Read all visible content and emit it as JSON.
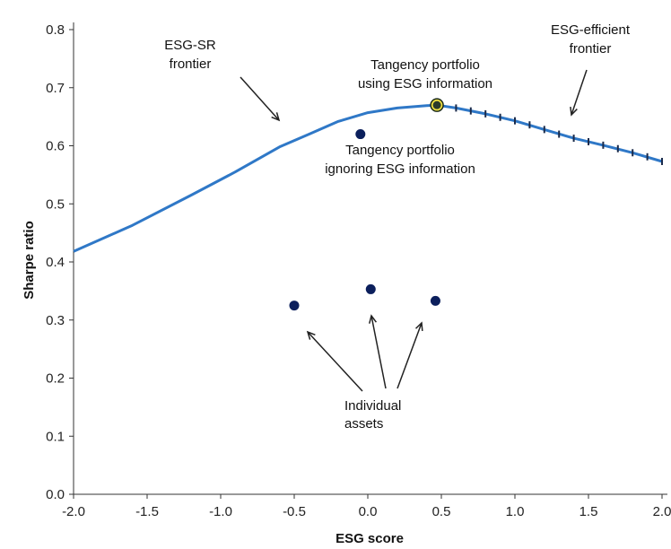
{
  "chart_data": {
    "type": "line",
    "title": "",
    "xlabel": "ESG score",
    "ylabel": "Sharpe ratio",
    "xlim": [
      -2.0,
      2.0
    ],
    "ylim": [
      0.0,
      0.8
    ],
    "x_ticks": [
      "-2.0",
      "-1.5",
      "-1.0",
      "-0.5",
      "0.0",
      "0.5",
      "1.0",
      "1.5",
      "2.0"
    ],
    "y_ticks": [
      "0.0",
      "0.1",
      "0.2",
      "0.3",
      "0.4",
      "0.5",
      "0.6",
      "0.7",
      "0.8"
    ],
    "grid": false,
    "colors": {
      "frontier": "#2f78c7",
      "points": "#0b1f5c",
      "highlight": "#f0e040",
      "arrow": "#222222"
    },
    "series": [
      {
        "kind": "frontier-line",
        "x": [
          -2.0,
          -1.6,
          -1.2,
          -0.9,
          -0.6,
          -0.4,
          -0.2,
          0.0,
          0.2,
          0.4,
          0.47,
          0.6,
          0.8,
          1.0,
          1.2,
          1.4,
          1.6,
          1.8,
          2.0
        ],
        "y": [
          0.418,
          0.463,
          0.515,
          0.555,
          0.598,
          0.62,
          0.642,
          0.657,
          0.665,
          0.669,
          0.67,
          0.665,
          0.655,
          0.643,
          0.628,
          0.613,
          0.601,
          0.588,
          0.573
        ]
      },
      {
        "kind": "efficient-ticks",
        "x": [
          0.5,
          0.6,
          0.7,
          0.8,
          0.9,
          1.0,
          1.1,
          1.2,
          1.3,
          1.4,
          1.5,
          1.6,
          1.7,
          1.8,
          1.9,
          2.0
        ],
        "y": [
          0.669,
          0.665,
          0.66,
          0.655,
          0.649,
          0.643,
          0.636,
          0.628,
          0.62,
          0.613,
          0.607,
          0.601,
          0.595,
          0.588,
          0.581,
          0.573
        ]
      },
      {
        "kind": "points",
        "points": [
          {
            "x": -0.05,
            "y": 0.62
          },
          {
            "x": -0.5,
            "y": 0.325
          },
          {
            "x": 0.02,
            "y": 0.353
          },
          {
            "x": 0.46,
            "y": 0.333
          }
        ]
      },
      {
        "kind": "tangency-esg",
        "points": [
          {
            "x": 0.47,
            "y": 0.67
          }
        ]
      }
    ],
    "annotations": [
      {
        "lines": [
          "ESG-SR",
          "frontier"
        ]
      },
      {
        "lines": [
          "ESG-efficient",
          "frontier"
        ]
      },
      {
        "lines": [
          "Tangency portfolio",
          "using ESG information"
        ]
      },
      {
        "lines": [
          "Tangency portfolio",
          "ignoring ESG information"
        ]
      },
      {
        "lines": [
          "Individual",
          "assets"
        ]
      }
    ]
  }
}
